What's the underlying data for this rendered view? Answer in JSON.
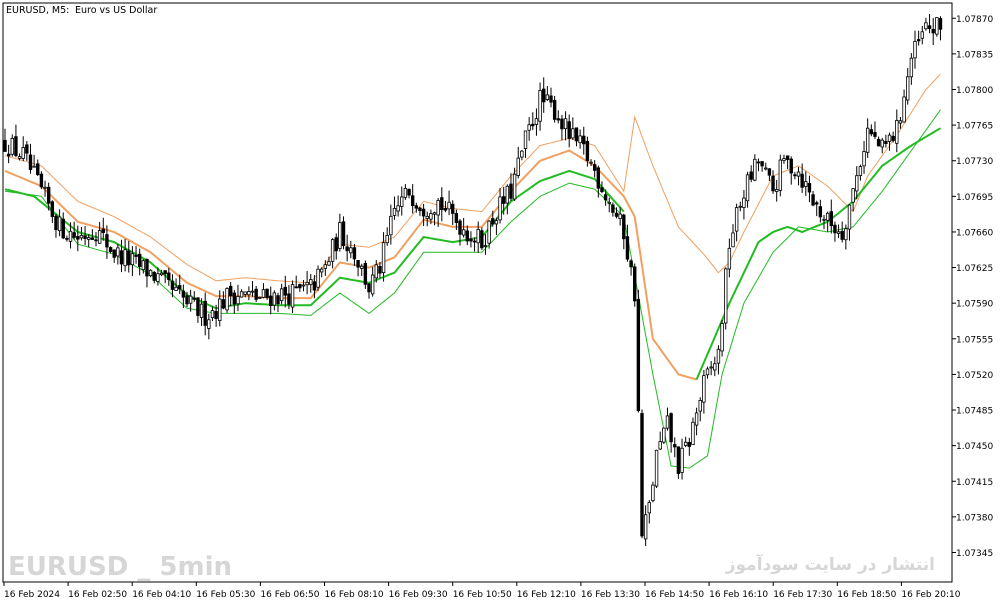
{
  "header": {
    "symbol": "EURUSD, M5:",
    "description": "Euro vs US Dollar"
  },
  "watermark": {
    "left": "EURUSD _ 5min",
    "right": "انتشار در سایت سودآموز"
  },
  "colors": {
    "background": "#ffffff",
    "frame": "#000000",
    "candle_up": "#ffffff",
    "candle_down": "#000000",
    "candle_outline": "#000000",
    "envelope_upper": "#f0a060",
    "envelope_lower": "#22bb22"
  },
  "chart_data": {
    "type": "candlestick",
    "instrument": "EURUSD",
    "timeframe": "M5",
    "ylim": [
      1.07316,
      1.07885
    ],
    "y_ticks": [
      "1.07870",
      "1.07835",
      "1.07800",
      "1.07765",
      "1.07730",
      "1.07695",
      "1.07660",
      "1.07625",
      "1.07590",
      "1.07555",
      "1.07520",
      "1.07485",
      "1.07450",
      "1.07415",
      "1.07380",
      "1.07345"
    ],
    "x_tick_labels": [
      "16 Feb 2024",
      "16 Feb 02:50",
      "16 Feb 04:10",
      "16 Feb 05:30",
      "16 Feb 06:50",
      "16 Feb 08:10",
      "16 Feb 09:30",
      "16 Feb 10:50",
      "16 Feb 12:10",
      "16 Feb 13:30",
      "16 Feb 14:50",
      "16 Feb 16:10",
      "16 Feb 17:30",
      "16 Feb 18:50",
      "16 Feb 20:10"
    ],
    "close_path": [
      [
        0,
        1.07748
      ],
      [
        5,
        1.07735
      ],
      [
        10,
        1.077
      ],
      [
        15,
        1.07665
      ],
      [
        20,
        1.07655
      ],
      [
        25,
        1.07662
      ],
      [
        30,
        1.0764
      ],
      [
        35,
        1.0763
      ],
      [
        40,
        1.0762
      ],
      [
        45,
        1.07605
      ],
      [
        50,
        1.0759
      ],
      [
        55,
        1.07578
      ],
      [
        58,
        1.07585
      ],
      [
        62,
        1.076
      ],
      [
        66,
        1.07598
      ],
      [
        70,
        1.07595
      ],
      [
        75,
        1.07598
      ],
      [
        80,
        1.076
      ],
      [
        84,
        1.07605
      ],
      [
        88,
        1.07625
      ],
      [
        92,
        1.0766
      ],
      [
        96,
        1.0764
      ],
      [
        100,
        1.07605
      ],
      [
        103,
        1.07625
      ],
      [
        107,
        1.0768
      ],
      [
        111,
        1.077
      ],
      [
        115,
        1.07685
      ],
      [
        119,
        1.0769
      ],
      [
        123,
        1.07675
      ],
      [
        127,
        1.0766
      ],
      [
        131,
        1.0765
      ],
      [
        135,
        1.0768
      ],
      [
        139,
        1.077
      ],
      [
        143,
        1.0775
      ],
      [
        147,
        1.0779
      ],
      [
        151,
        1.0778
      ],
      [
        155,
        1.07755
      ],
      [
        159,
        1.0774
      ],
      [
        162,
        1.0772
      ],
      [
        166,
        1.0769
      ],
      [
        170,
        1.0766
      ],
      [
        173,
        1.076
      ],
      [
        175,
        1.0736
      ],
      [
        177,
        1.0739
      ],
      [
        179,
        1.0744
      ],
      [
        182,
        1.0747
      ],
      [
        185,
        1.0743
      ],
      [
        188,
        1.07455
      ],
      [
        192,
        1.0751
      ],
      [
        196,
        1.0754
      ],
      [
        199,
        1.0765
      ],
      [
        203,
        1.077
      ],
      [
        207,
        1.0773
      ],
      [
        211,
        1.077
      ],
      [
        214,
        1.0773
      ],
      [
        218,
        1.0772
      ],
      [
        222,
        1.0769
      ],
      [
        226,
        1.0767
      ],
      [
        230,
        1.0766
      ],
      [
        233,
        1.077
      ],
      [
        237,
        1.0776
      ],
      [
        241,
        1.0774
      ],
      [
        245,
        1.0776
      ],
      [
        249,
        1.0783
      ],
      [
        253,
        1.0786
      ],
      [
        257,
        1.0786
      ]
    ],
    "upper_band_path": [
      [
        0,
        1.07735
      ],
      [
        10,
        1.07725
      ],
      [
        20,
        1.0769
      ],
      [
        30,
        1.07675
      ],
      [
        40,
        1.07655
      ],
      [
        50,
        1.07628
      ],
      [
        58,
        1.07612
      ],
      [
        66,
        1.07615
      ],
      [
        75,
        1.07612
      ],
      [
        84,
        1.0761
      ],
      [
        92,
        1.07648
      ],
      [
        100,
        1.07645
      ],
      [
        107,
        1.07655
      ],
      [
        115,
        1.0769
      ],
      [
        123,
        1.07683
      ],
      [
        131,
        1.0768
      ],
      [
        139,
        1.07715
      ],
      [
        147,
        1.07745
      ],
      [
        155,
        1.07752
      ],
      [
        162,
        1.07745
      ],
      [
        170,
        1.077
      ],
      [
        173,
        1.07773
      ],
      [
        178,
        1.07725
      ],
      [
        185,
        1.07665
      ],
      [
        192,
        1.07638
      ],
      [
        196,
        1.0762
      ],
      [
        199,
        1.0763
      ],
      [
        203,
        1.0766
      ],
      [
        211,
        1.07715
      ],
      [
        218,
        1.07725
      ],
      [
        226,
        1.07705
      ],
      [
        233,
        1.0768
      ],
      [
        237,
        1.07715
      ],
      [
        245,
        1.07755
      ],
      [
        253,
        1.078
      ],
      [
        257,
        1.07815
      ]
    ],
    "mid_band_upper_path": [
      [
        0,
        1.0772
      ],
      [
        10,
        1.07705
      ],
      [
        20,
        1.0767
      ],
      [
        30,
        1.0766
      ],
      [
        40,
        1.0764
      ],
      [
        50,
        1.0761
      ],
      [
        58,
        1.07597
      ],
      [
        66,
        1.07597
      ],
      [
        75,
        1.07595
      ],
      [
        84,
        1.07595
      ],
      [
        92,
        1.0763
      ],
      [
        100,
        1.07625
      ],
      [
        107,
        1.07635
      ],
      [
        115,
        1.07672
      ],
      [
        123,
        1.07665
      ],
      [
        131,
        1.07665
      ],
      [
        139,
        1.077
      ],
      [
        147,
        1.0773
      ],
      [
        155,
        1.0774
      ],
      [
        162,
        1.07725
      ],
      [
        170,
        1.07695
      ],
      [
        173,
        1.07675
      ],
      [
        178,
        1.07555
      ],
      [
        185,
        1.0752
      ],
      [
        190,
        1.07515
      ]
    ],
    "mid_band_lower_path": [
      [
        0,
        1.07702
      ],
      [
        8,
        1.07695
      ],
      [
        20,
        1.0766
      ],
      [
        30,
        1.0765
      ],
      [
        40,
        1.0763
      ],
      [
        50,
        1.07598
      ],
      [
        58,
        1.07585
      ],
      [
        66,
        1.0759
      ],
      [
        75,
        1.07588
      ],
      [
        84,
        1.07588
      ],
      [
        92,
        1.07615
      ],
      [
        100,
        1.0761
      ],
      [
        107,
        1.0762
      ],
      [
        115,
        1.07655
      ],
      [
        123,
        1.0765
      ],
      [
        131,
        1.07655
      ],
      [
        139,
        1.0769
      ],
      [
        147,
        1.0771
      ],
      [
        155,
        1.0772
      ],
      [
        162,
        1.07712
      ],
      [
        170,
        1.0768
      ]
    ],
    "mid_band_lower_path_2": [
      [
        190,
        1.07515
      ],
      [
        199,
        1.0759
      ],
      [
        207,
        1.0765
      ],
      [
        211,
        1.0766
      ],
      [
        215,
        1.07665
      ],
      [
        219,
        1.0766
      ],
      [
        226,
        1.0767
      ],
      [
        233,
        1.0769
      ],
      [
        241,
        1.07725
      ],
      [
        249,
        1.07745
      ],
      [
        257,
        1.07762
      ]
    ],
    "lower_band_path": [
      [
        0,
        1.077
      ],
      [
        10,
        1.07695
      ],
      [
        20,
        1.07648
      ],
      [
        30,
        1.07638
      ],
      [
        40,
        1.07618
      ],
      [
        50,
        1.07585
      ],
      [
        58,
        1.0758
      ],
      [
        66,
        1.0758
      ],
      [
        75,
        1.0758
      ],
      [
        84,
        1.07578
      ],
      [
        92,
        1.076
      ],
      [
        100,
        1.0758
      ],
      [
        107,
        1.076
      ],
      [
        115,
        1.0764
      ],
      [
        123,
        1.0764
      ],
      [
        131,
        1.0764
      ],
      [
        139,
        1.0767
      ],
      [
        147,
        1.07695
      ],
      [
        155,
        1.07708
      ],
      [
        162,
        1.07702
      ],
      [
        170,
        1.07675
      ],
      [
        178,
        1.0752
      ],
      [
        183,
        1.0743
      ],
      [
        188,
        1.07428
      ],
      [
        193,
        1.0744
      ],
      [
        197,
        1.0752
      ],
      [
        203,
        1.0759
      ],
      [
        211,
        1.0764
      ],
      [
        218,
        1.07665
      ],
      [
        226,
        1.0766
      ],
      [
        233,
        1.07665
      ],
      [
        241,
        1.077
      ],
      [
        249,
        1.0774
      ],
      [
        257,
        1.0778
      ]
    ]
  }
}
